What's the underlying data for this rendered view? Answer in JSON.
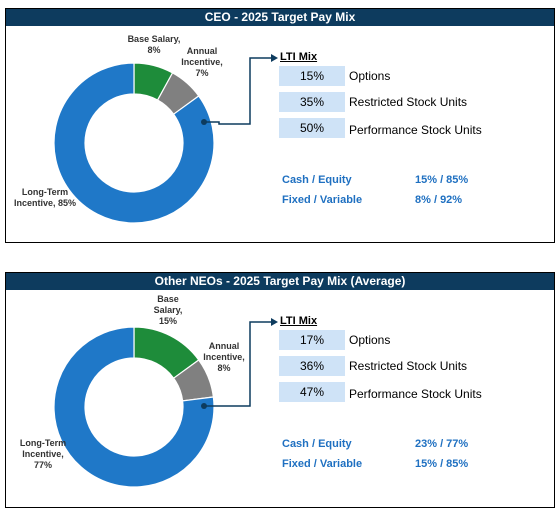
{
  "chart_data": [
    {
      "type": "pie",
      "title": "CEO - 2025 Target Pay Mix",
      "categories": [
        "Base Salary",
        "Annual Incentive",
        "Long-Term Incentive"
      ],
      "values": [
        8,
        7,
        85
      ],
      "colors": [
        "#1e8c3a",
        "#808080",
        "#1f78c8"
      ],
      "slice_labels": [
        "Base Salary, 8%",
        "Annual Incentive, 7%",
        "Long-Term Incentive, 85%"
      ],
      "lti_mix": {
        "title": "LTI Mix",
        "rows": [
          {
            "pct": "15%",
            "label": "Options"
          },
          {
            "pct": "35%",
            "label": "Restricted Stock Units"
          },
          {
            "pct": "50%",
            "label": "Performance Stock Units"
          }
        ]
      },
      "stats": [
        {
          "label": "Cash / Equity",
          "value": "15% / 85%"
        },
        {
          "label": "Fixed / Variable",
          "value": "8% / 92%"
        }
      ]
    },
    {
      "type": "pie",
      "title": "Other NEOs - 2025 Target Pay Mix (Average)",
      "categories": [
        "Base Salary",
        "Annual Incentive",
        "Long-Term Incentive"
      ],
      "values": [
        15,
        8,
        77
      ],
      "colors": [
        "#1e8c3a",
        "#808080",
        "#1f78c8"
      ],
      "slice_labels": [
        "Base Salary, 15%",
        "Annual Incentive, 8%",
        "Long-Term Incentive, 77%"
      ],
      "lti_mix": {
        "title": "LTI Mix",
        "rows": [
          {
            "pct": "17%",
            "label": "Options"
          },
          {
            "pct": "36%",
            "label": "Restricted Stock Units"
          },
          {
            "pct": "47%",
            "label": "Performance Stock Units"
          }
        ]
      },
      "stats": [
        {
          "label": "Cash / Equity",
          "value": "23% / 77%"
        },
        {
          "label": "Fixed / Variable",
          "value": "15% / 85%"
        }
      ]
    }
  ]
}
